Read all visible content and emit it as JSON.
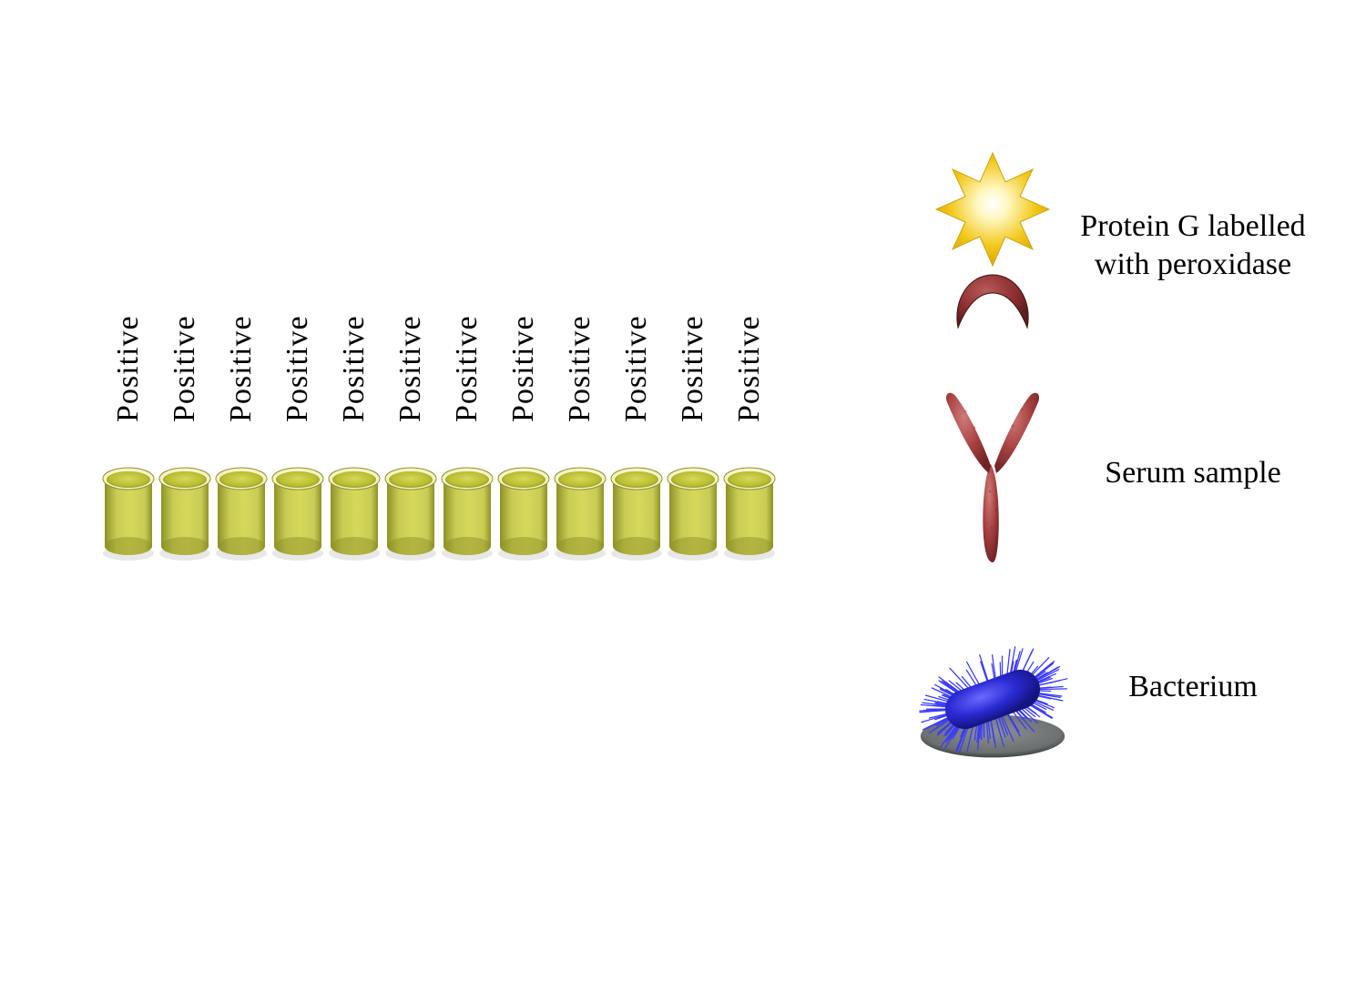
{
  "type": "infographic",
  "background_color": "#ffffff",
  "wells": {
    "count": 12,
    "label": "Positive",
    "label_fontsize": 34,
    "label_color": "#000000",
    "fill_color": "#b9bd2f",
    "fill_color_light": "#d6d85a",
    "rim_highlight": "#f4f4c8",
    "body_color": "#c8cc55",
    "body_shadow": "#8e9226",
    "shadow_color": "#d9d9d9",
    "well_width": 62,
    "well_height": 110
  },
  "legend": {
    "items": [
      {
        "key": "protein_g",
        "label": "Protein G labelled with peroxidase",
        "star_outer": "#f2c617",
        "star_inner": "#fffbe0",
        "horseshoe_color": "#8e2f2f",
        "horseshoe_shadow": "#5a1c1c"
      },
      {
        "key": "serum",
        "label": "Serum sample",
        "antibody_color": "#a64040",
        "antibody_shadow": "#6e2323"
      },
      {
        "key": "bacterium",
        "label": "Bacterium",
        "body_color": "#2a2ad4",
        "body_dark": "#141480",
        "spike_color": "#3a3aff",
        "base_color": "#6c7070",
        "base_edge": "#3f4242"
      }
    ],
    "label_fontsize": 34,
    "label_color": "#000000"
  }
}
